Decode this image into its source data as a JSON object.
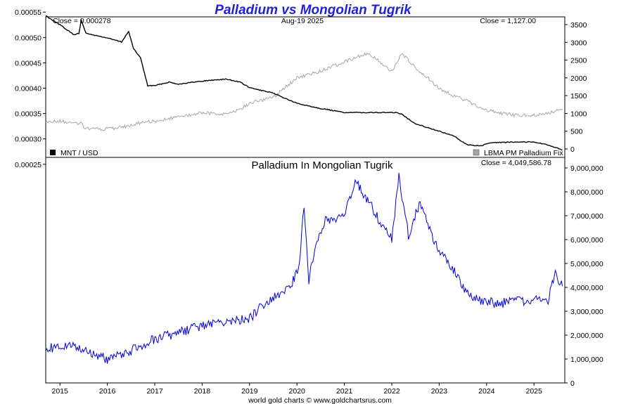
{
  "title": "Palladium vs Mongolian Tugrik",
  "footer": "world gold charts © www.goldchartsrus.com",
  "colors": {
    "title": "#1f1fe0",
    "mnt": "#000000",
    "palladium_usd": "#a6a6a6",
    "palladium_mnt": "#0000dd"
  },
  "top": {
    "close_left": "Close = 0.000278",
    "date": "Aug-19  2025",
    "close_right": "Close = 1,127.00",
    "legend_left": "MNT / USD",
    "legend_right": "LBMA PM Palladium Fix"
  },
  "bottom": {
    "subtitle": "Palladium In Mongolian Tugrik",
    "close": "Close = 4,049,586.78"
  },
  "chart_data": [
    {
      "type": "line",
      "title": "",
      "x": [
        "2014.7",
        "2015.0",
        "2015.3",
        "2015.4",
        "2015.45",
        "2015.55",
        "2016.0",
        "2016.3",
        "2016.45",
        "2016.55",
        "2016.7",
        "2016.85",
        "2017.0",
        "2017.3",
        "2017.5",
        "2018.0",
        "2018.5",
        "2018.8",
        "2019.0",
        "2019.5",
        "2020.0",
        "2020.5",
        "2021.0",
        "2021.5",
        "2022.0",
        "2022.1",
        "2022.2",
        "2022.5",
        "2023.0",
        "2023.3",
        "2023.6",
        "2023.9",
        "2024.0",
        "2024.3",
        "2024.6",
        "2025.0",
        "2025.3",
        "2025.6"
      ],
      "series": [
        {
          "name": "MNT / USD",
          "axis": "left",
          "values": [
            0.000543,
            0.000525,
            0.000505,
            0.000508,
            0.000535,
            0.000508,
            0.000499,
            0.000491,
            0.000512,
            0.000478,
            0.00046,
            0.000405,
            0.000405,
            0.000412,
            0.000408,
            0.000414,
            0.000418,
            0.000412,
            0.000401,
            0.00039,
            0.00037,
            0.00036,
            0.000352,
            0.000352,
            0.000352,
            0.000352,
            0.000349,
            0.00033,
            0.000315,
            0.000306,
            0.000288,
            0.000286,
            0.000291,
            0.000293,
            0.000294,
            0.000294,
            0.000288,
            0.000278
          ]
        },
        {
          "name": "LBMA PM Palladium Fix",
          "axis": "right",
          "values": [
            760,
            780,
            740,
            700,
            710,
            560,
            560,
            600,
            650,
            700,
            750,
            780,
            770,
            850,
            900,
            1020,
            980,
            1100,
            1300,
            1450,
            2000,
            2200,
            2450,
            2700,
            2200,
            2400,
            2700,
            2300,
            1700,
            1500,
            1350,
            1100,
            1100,
            1000,
            950,
            950,
            1000,
            1127
          ]
        }
      ],
      "ylim_left": [
        0.00024,
        0.00056
      ],
      "ylim_right": [
        0,
        3500
      ],
      "yticks_left": [
        "0.00025",
        "0.00030",
        "0.00035",
        "0.00040",
        "0.00045",
        "0.00050",
        "0.00055"
      ],
      "yticks_right": [
        "0",
        "500",
        "1000",
        "1500",
        "2000",
        "2500",
        "3000",
        "3500"
      ],
      "legend": "bottom"
    },
    {
      "type": "line",
      "title": "Palladium In Mongolian Tugrik",
      "x": [
        "2014.7",
        "2015.0",
        "2015.3",
        "2015.5",
        "2015.8",
        "2016.0",
        "2016.3",
        "2016.5",
        "2016.8",
        "2017.0",
        "2017.5",
        "2018.0",
        "2018.5",
        "2019.0",
        "2019.3",
        "2019.6",
        "2019.9",
        "2020.05",
        "2020.15",
        "2020.25",
        "2020.4",
        "2020.6",
        "2021.0",
        "2021.25",
        "2021.4",
        "2021.6",
        "2021.8",
        "2022.0",
        "2022.15",
        "2022.35",
        "2022.6",
        "2022.85",
        "2023.0",
        "2023.3",
        "2023.6",
        "2023.9",
        "2024.0",
        "2024.3",
        "2024.6",
        "2024.9",
        "2025.0",
        "2025.3",
        "2025.45",
        "2025.6"
      ],
      "series": [
        {
          "name": "",
          "values": [
            1450000,
            1500000,
            1550000,
            1400000,
            1150000,
            1000000,
            1150000,
            1350000,
            1650000,
            1850000,
            2100000,
            2400000,
            2550000,
            2700000,
            3300000,
            3700000,
            4200000,
            5000000,
            7500000,
            4300000,
            5800000,
            6800000,
            7000000,
            8500000,
            7900000,
            7300000,
            6600000,
            6000000,
            8600000,
            6200000,
            7600000,
            6200000,
            5500000,
            4700000,
            3700000,
            3400000,
            3400000,
            3300000,
            3600000,
            3300000,
            3600000,
            3500000,
            4600000,
            4049586.78
          ]
        }
      ],
      "ylim": [
        0,
        9000000
      ],
      "yticks": [
        "0",
        "1,000,000",
        "2,000,000",
        "3,000,000",
        "4,000,000",
        "5,000,000",
        "6,000,000",
        "7,000,000",
        "8,000,000",
        "9,000,000"
      ]
    }
  ],
  "xticks": [
    "2015",
    "2016",
    "2017",
    "2018",
    "2019",
    "2020",
    "2021",
    "2022",
    "2023",
    "2024",
    "2025"
  ]
}
